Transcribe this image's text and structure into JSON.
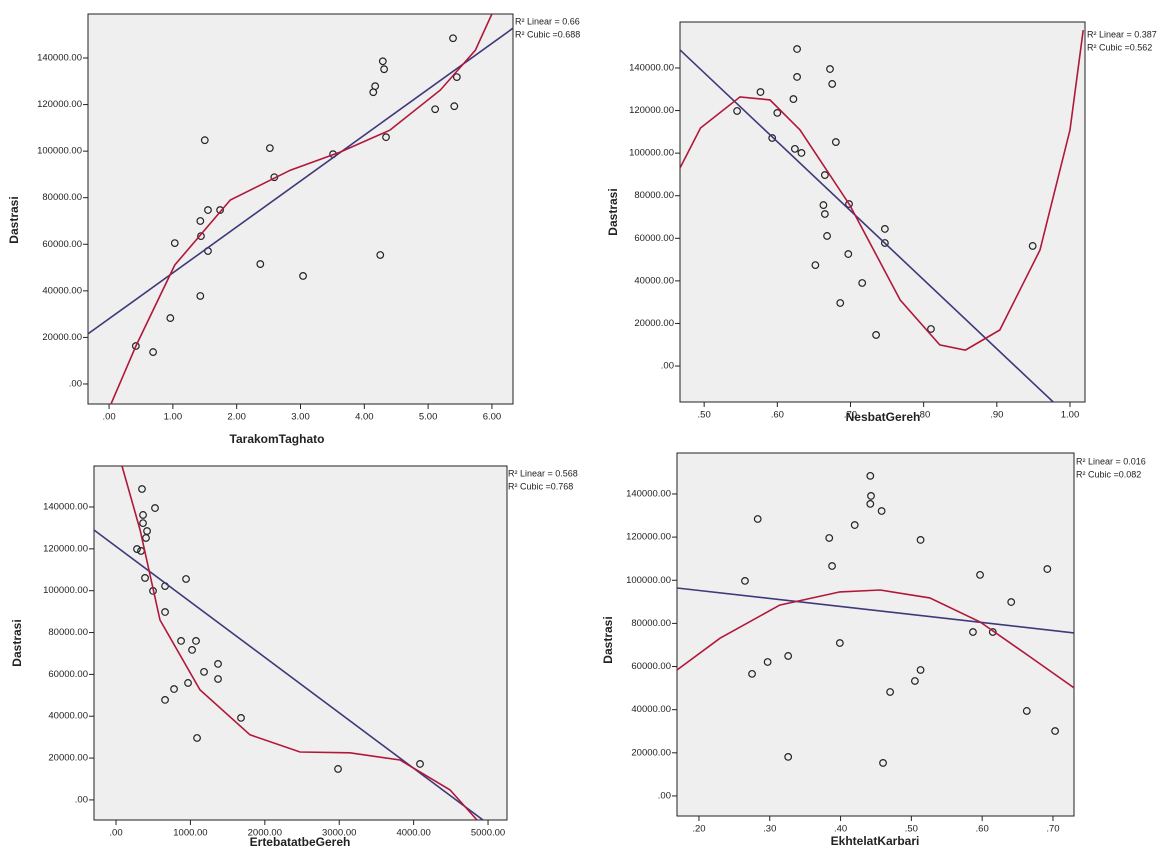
{
  "chart_data": [
    {
      "type": "scatter",
      "x_label": "TarakomTaghato",
      "y_label": "Dastrasi",
      "xlim": [
        -0.33,
        6.33
      ],
      "ylim": [
        -8600,
        158900
      ],
      "xticks": [
        {
          "value": 0,
          "label": ".00"
        },
        {
          "value": 1,
          "label": "1.00"
        },
        {
          "value": 2,
          "label": "2.00"
        },
        {
          "value": 3,
          "label": "3.00"
        },
        {
          "value": 4,
          "label": "4.00"
        },
        {
          "value": 5,
          "label": "5.00"
        },
        {
          "value": 6,
          "label": "6.00"
        }
      ],
      "yticks": [
        {
          "value": 0,
          "label": ".00"
        },
        {
          "value": 20000,
          "label": "20000.00"
        },
        {
          "value": 40000,
          "label": "40000.00"
        },
        {
          "value": 60000,
          "label": "60000.00"
        },
        {
          "value": 80000,
          "label": "80000.00"
        },
        {
          "value": 100000,
          "label": "100000.00"
        },
        {
          "value": 120000,
          "label": "120000.00"
        },
        {
          "value": 140000,
          "label": "140000.00"
        }
      ],
      "x": [
        0.42,
        0.69,
        1.03,
        0.96,
        1.43,
        1.44,
        1.43,
        1.5,
        1.55,
        1.55,
        1.74,
        2.37,
        2.52,
        2.59,
        3.04,
        3.51,
        4.14,
        4.17,
        4.29,
        4.31,
        4.25,
        4.34,
        5.11,
        5.39,
        5.41,
        5.45
      ],
      "values": [
        16300,
        13700,
        60500,
        28300,
        70000,
        63500,
        37800,
        104700,
        74700,
        57100,
        74700,
        51500,
        101300,
        88800,
        46400,
        98700,
        125300,
        127900,
        138600,
        135200,
        55400,
        106000,
        118000,
        148500,
        119300,
        131800
      ],
      "lines": [
        {
          "color": "#3d3a7a",
          "x": [
            -0.33,
            6.33
          ],
          "values": [
            21500,
            152800
          ]
        },
        {
          "color": "#b0183a",
          "x": [
            0.03,
            0.42,
            1.03,
            1.9,
            2.84,
            3.62,
            4.4,
            5.19,
            5.74,
            6.0
          ],
          "values": [
            -8600,
            16300,
            51100,
            79000,
            91800,
            99600,
            109000,
            126200,
            143300,
            158900
          ]
        }
      ],
      "annotations": [
        "R² Linear = 0.66",
        "R² Cubic =0.688"
      ]
    },
    {
      "type": "scatter",
      "x_label": "NesbatGereh",
      "y_label": "Dastrasi",
      "xlim": [
        0.467,
        1.0205
      ],
      "ylim": [
        -16900,
        161600
      ],
      "xticks": [
        {
          "value": 0.5,
          "label": ".50"
        },
        {
          "value": 0.6,
          "label": ".60"
        },
        {
          "value": 0.7,
          "label": ".70"
        },
        {
          "value": 0.8,
          "label": ".80"
        },
        {
          "value": 0.9,
          "label": ".90"
        },
        {
          "value": 1,
          "label": "1.00"
        }
      ],
      "yticks": [
        {
          "value": 0,
          "label": ".00"
        },
        {
          "value": 20000,
          "label": "20000.00"
        },
        {
          "value": 40000,
          "label": "40000.00"
        },
        {
          "value": 60000,
          "label": "60000.00"
        },
        {
          "value": 80000,
          "label": "80000.00"
        },
        {
          "value": 100000,
          "label": "100000.00"
        },
        {
          "value": 120000,
          "label": "120000.00"
        },
        {
          "value": 140000,
          "label": "140000.00"
        }
      ],
      "x": [
        0.545,
        0.577,
        0.6,
        0.593,
        0.624,
        0.633,
        0.622,
        0.627,
        0.627,
        0.672,
        0.675,
        0.68,
        0.665,
        0.663,
        0.665,
        0.668,
        0.652,
        0.698,
        0.697,
        0.716,
        0.747,
        0.747,
        0.686,
        0.735,
        0.81,
        0.949
      ],
      "values": [
        119800,
        128700,
        118900,
        107100,
        102000,
        100100,
        125400,
        135800,
        148900,
        139500,
        132500,
        105200,
        89700,
        75600,
        71400,
        61100,
        47400,
        76100,
        52600,
        39000,
        64400,
        57800,
        29600,
        14600,
        17400,
        56400
      ],
      "lines": [
        {
          "color": "#3d3a7a",
          "x": [
            0.467,
            0.977
          ],
          "values": [
            148500,
            -16900
          ]
        },
        {
          "color": "#b0183a",
          "x": [
            0.467,
            0.495,
            0.549,
            0.59,
            0.631,
            0.699,
            0.768,
            0.822,
            0.857,
            0.904,
            0.959,
            1.0,
            1.018
          ],
          "values": [
            93000,
            111800,
            126400,
            125000,
            110900,
            75600,
            31000,
            9900,
            7500,
            16900,
            54500,
            110900,
            157800
          ]
        }
      ],
      "annotations": [
        "R² Linear = 0.387",
        "R² Cubic =0.562"
      ]
    },
    {
      "type": "scatter",
      "x_label": "ErtebatatbeGereh",
      "y_label": "Dastrasi",
      "xlim": [
        -296,
        5255
      ],
      "ylim": [
        -9600,
        159600
      ],
      "xticks": [
        {
          "value": 0,
          "label": ".00"
        },
        {
          "value": 1000,
          "label": "1000.00"
        },
        {
          "value": 2000,
          "label": "2000.00"
        },
        {
          "value": 3000,
          "label": "3000.00"
        },
        {
          "value": 4000,
          "label": "4000.00"
        },
        {
          "value": 5000,
          "label": "5000.00"
        }
      ],
      "yticks": [
        {
          "value": 0,
          "label": ".00"
        },
        {
          "value": 20000,
          "label": "20000.00"
        },
        {
          "value": 40000,
          "label": "40000.00"
        },
        {
          "value": 60000,
          "label": "60000.00"
        },
        {
          "value": 80000,
          "label": "80000.00"
        },
        {
          "value": 100000,
          "label": "100000.00"
        },
        {
          "value": 120000,
          "label": "120000.00"
        },
        {
          "value": 140000,
          "label": "140000.00"
        }
      ],
      "x": [
        282,
        336,
        349,
        363,
        363,
        417,
        403,
        390,
        524,
        497,
        659,
        659,
        941,
        874,
        1022,
        1075,
        1183,
        1371,
        1371,
        968,
        780,
        659,
        1089,
        1680,
        2984,
        4086
      ],
      "values": [
        119900,
        119000,
        148600,
        136200,
        132300,
        128500,
        125200,
        106100,
        139500,
        99900,
        102200,
        89800,
        105600,
        76000,
        71700,
        76000,
        61200,
        65000,
        57800,
        55900,
        53000,
        47800,
        29600,
        39200,
        14800,
        17200
      ],
      "lines": [
        {
          "color": "#3d3a7a",
          "x": [
            -296,
            4933
          ],
          "values": [
            129000,
            -9600
          ]
        },
        {
          "color": "#b0183a",
          "x": [
            81,
            323,
            591,
            1129,
            1801,
            2473,
            3145,
            3817,
            4489,
            4852
          ],
          "values": [
            159600,
            129000,
            86000,
            52600,
            31100,
            22900,
            22500,
            19100,
            4800,
            -9600
          ]
        }
      ],
      "annotations": [
        "R² Linear = 0.568",
        "R² Cubic =0.768"
      ]
    },
    {
      "type": "scatter",
      "x_label": "EkhtelatKarbari",
      "y_label": "Dastrasi",
      "xlim": [
        0.169,
        0.7297
      ],
      "ylim": [
        -9300,
        159000
      ],
      "xticks": [
        {
          "value": 0.2,
          "label": ".20"
        },
        {
          "value": 0.3,
          "label": ".30"
        },
        {
          "value": 0.4,
          "label": ".40"
        },
        {
          "value": 0.5,
          "label": ".50"
        },
        {
          "value": 0.6,
          "label": ".60"
        },
        {
          "value": 0.7,
          "label": ".70"
        }
      ],
      "yticks": [
        {
          "value": 0,
          "label": ".00"
        },
        {
          "value": 20000,
          "label": "20000.00"
        },
        {
          "value": 40000,
          "label": "40000.00"
        },
        {
          "value": 60000,
          "label": "60000.00"
        },
        {
          "value": 80000,
          "label": "80000.00"
        },
        {
          "value": 100000,
          "label": "100000.00"
        },
        {
          "value": 120000,
          "label": "120000.00"
        },
        {
          "value": 140000,
          "label": "140000.00"
        }
      ],
      "x": [
        0.265,
        0.283,
        0.275,
        0.297,
        0.326,
        0.326,
        0.384,
        0.388,
        0.399,
        0.42,
        0.442,
        0.443,
        0.442,
        0.458,
        0.46,
        0.47,
        0.505,
        0.513,
        0.513,
        0.587,
        0.597,
        0.615,
        0.641,
        0.692,
        0.663,
        0.703
      ],
      "values": [
        99700,
        128400,
        56600,
        62100,
        64900,
        18100,
        119600,
        106600,
        70900,
        125600,
        148400,
        139100,
        135400,
        132100,
        15300,
        48200,
        53300,
        58400,
        118700,
        76000,
        102500,
        76000,
        89900,
        105200,
        39400,
        30100
      ],
      "lines": [
        {
          "color": "#3d3a7a",
          "x": [
            0.169,
            0.7297
          ],
          "values": [
            96400,
            75600
          ]
        },
        {
          "color": "#b0183a",
          "x": [
            0.169,
            0.23,
            0.314,
            0.399,
            0.456,
            0.526,
            0.597,
            0.668,
            0.7297
          ],
          "values": [
            58400,
            73200,
            88500,
            94600,
            95500,
            91800,
            80700,
            64400,
            50100
          ]
        }
      ],
      "annotations": [
        "R² Linear = 0.016",
        "R² Cubic =0.082"
      ]
    }
  ]
}
